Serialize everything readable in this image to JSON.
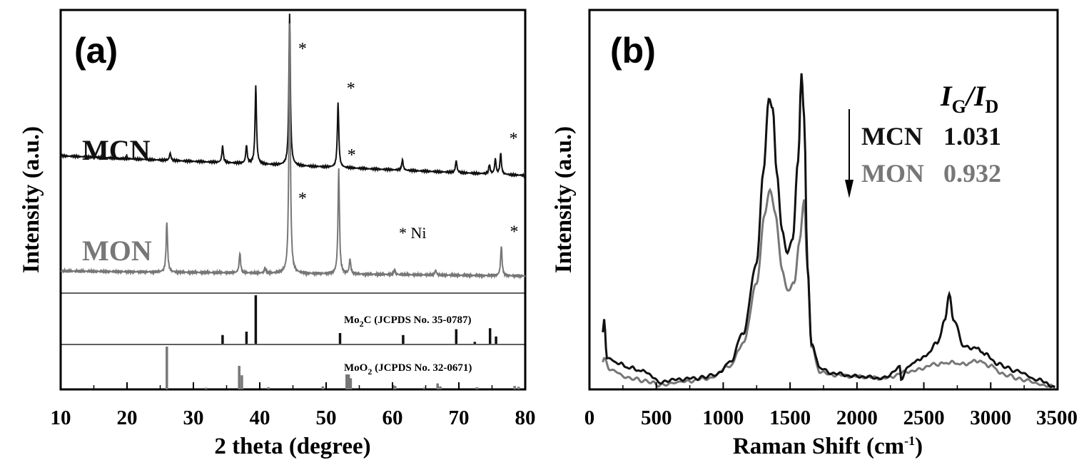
{
  "chart_data": [
    {
      "panel": "(a)",
      "type": "line",
      "xlabel": "2 theta (degree)",
      "ylabel": "Intensity (a.u.)",
      "xlim": [
        10,
        80
      ],
      "xticks": [
        "10",
        "20",
        "30",
        "40",
        "50",
        "60",
        "70",
        "80"
      ],
      "colors": {
        "MCN": "#111111",
        "MON": "#777777"
      },
      "series": [
        {
          "name": "MCN",
          "baseline_start": 0.13,
          "baseline_end": 0.0,
          "peaks": [
            [
              26.5,
              0.05
            ],
            [
              34.4,
              0.11
            ],
            [
              38.0,
              0.12
            ],
            [
              39.4,
              0.52
            ],
            [
              44.5,
              1.0
            ],
            [
              51.8,
              0.43
            ],
            [
              61.5,
              0.07
            ],
            [
              69.6,
              0.08
            ],
            [
              74.6,
              0.06
            ],
            [
              75.5,
              0.1
            ],
            [
              76.3,
              0.14
            ]
          ]
        },
        {
          "name": "MON",
          "baseline_start": 0.02,
          "baseline_end": 0.0,
          "peaks": [
            [
              26.0,
              0.2
            ],
            [
              37.0,
              0.08
            ],
            [
              40.8,
              0.02
            ],
            [
              44.5,
              1.0
            ],
            [
              51.9,
              0.42
            ],
            [
              53.6,
              0.06
            ],
            [
              60.3,
              0.02
            ],
            [
              66.5,
              0.02
            ],
            [
              76.4,
              0.12
            ]
          ]
        }
      ],
      "annotations": [
        {
          "text": "*",
          "series": "MCN",
          "x": 44.5
        },
        {
          "text": "*",
          "series": "MCN",
          "x": 51.8
        },
        {
          "text": "*",
          "series": "MCN",
          "x": 76.3
        },
        {
          "text": "*",
          "series": "MON",
          "x": 44.5
        },
        {
          "text": "*",
          "series": "MON",
          "x": 51.9
        },
        {
          "text": "*",
          "series": "MON",
          "x": 76.4
        },
        {
          "text": "* Ni"
        }
      ],
      "reference_patterns": [
        {
          "label_main": "Mo",
          "label_sub": "2",
          "label_rest": "C (JCPDS No. 35-0787)",
          "color": "#111111",
          "lines": [
            [
              34.4,
              0.18
            ],
            [
              38.0,
              0.25
            ],
            [
              39.4,
              1.0
            ],
            [
              52.1,
              0.22
            ],
            [
              61.6,
              0.18
            ],
            [
              69.6,
              0.3
            ],
            [
              74.7,
              0.32
            ],
            [
              75.6,
              0.15
            ],
            [
              72.4,
              0.04
            ]
          ]
        },
        {
          "label_main": "MoO",
          "label_sub": "2",
          "label_rest": " (JCPDS No. 32-0671)",
          "color": "#777777",
          "lines": [
            [
              26.0,
              1.0
            ],
            [
              31.9,
              0.04
            ],
            [
              36.9,
              0.55
            ],
            [
              37.3,
              0.33
            ],
            [
              41.3,
              0.05
            ],
            [
              49.5,
              0.07
            ],
            [
              53.1,
              0.35
            ],
            [
              53.4,
              0.35
            ],
            [
              53.7,
              0.26
            ],
            [
              60.1,
              0.1
            ],
            [
              60.4,
              0.08
            ],
            [
              64.8,
              0.04
            ],
            [
              66.8,
              0.14
            ],
            [
              67.2,
              0.07
            ],
            [
              72.7,
              0.05
            ],
            [
              78.4,
              0.08
            ],
            [
              79.0,
              0.06
            ]
          ]
        }
      ]
    },
    {
      "panel": "(b)",
      "type": "line",
      "xlabel": "Raman Shift (cm",
      "xlabel_sup": "-1",
      "xlabel_close": ")",
      "ylabel": "Intensity (a.u.)",
      "xlim": [
        0,
        3500
      ],
      "xticks": [
        "0",
        "500",
        "1000",
        "1500",
        "2000",
        "2500",
        "3000",
        "3500"
      ],
      "colors": {
        "MCN": "#111111",
        "MON": "#777777"
      },
      "series": [
        {
          "name": "MCN",
          "points": [
            [
              100,
              0.16
            ],
            [
              110,
              0.2
            ],
            [
              130,
              0.09
            ],
            [
              200,
              0.075
            ],
            [
              300,
              0.06
            ],
            [
              400,
              0.05
            ],
            [
              480,
              0.035
            ],
            [
              520,
              0.015
            ],
            [
              600,
              0.025
            ],
            [
              800,
              0.03
            ],
            [
              950,
              0.04
            ],
            [
              1050,
              0.075
            ],
            [
              1150,
              0.16
            ],
            [
              1250,
              0.36
            ],
            [
              1300,
              0.62
            ],
            [
              1340,
              0.83
            ],
            [
              1370,
              0.8
            ],
            [
              1400,
              0.62
            ],
            [
              1440,
              0.45
            ],
            [
              1480,
              0.39
            ],
            [
              1520,
              0.43
            ],
            [
              1560,
              0.65
            ],
            [
              1585,
              0.9
            ],
            [
              1605,
              0.78
            ],
            [
              1630,
              0.35
            ],
            [
              1660,
              0.13
            ],
            [
              1720,
              0.06
            ],
            [
              1800,
              0.045
            ],
            [
              2000,
              0.035
            ],
            [
              2200,
              0.03
            ],
            [
              2320,
              0.06
            ],
            [
              2330,
              0.03
            ],
            [
              2400,
              0.07
            ],
            [
              2500,
              0.09
            ],
            [
              2600,
              0.13
            ],
            [
              2660,
              0.2
            ],
            [
              2690,
              0.27
            ],
            [
              2720,
              0.2
            ],
            [
              2800,
              0.12
            ],
            [
              2900,
              0.115
            ],
            [
              2960,
              0.1
            ],
            [
              3050,
              0.07
            ],
            [
              3200,
              0.05
            ],
            [
              3350,
              0.025
            ],
            [
              3480,
              0.005
            ]
          ]
        },
        {
          "name": "MON",
          "points": [
            [
              100,
              0.08
            ],
            [
              110,
              0.085
            ],
            [
              150,
              0.055
            ],
            [
              300,
              0.03
            ],
            [
              450,
              0.02
            ],
            [
              520,
              0.01
            ],
            [
              700,
              0.02
            ],
            [
              900,
              0.03
            ],
            [
              1050,
              0.065
            ],
            [
              1150,
              0.13
            ],
            [
              1250,
              0.3
            ],
            [
              1310,
              0.5
            ],
            [
              1350,
              0.57
            ],
            [
              1390,
              0.5
            ],
            [
              1440,
              0.34
            ],
            [
              1480,
              0.28
            ],
            [
              1530,
              0.3
            ],
            [
              1570,
              0.42
            ],
            [
              1605,
              0.54
            ],
            [
              1630,
              0.35
            ],
            [
              1660,
              0.12
            ],
            [
              1720,
              0.05
            ],
            [
              1800,
              0.04
            ],
            [
              2000,
              0.035
            ],
            [
              2200,
              0.03
            ],
            [
              2400,
              0.05
            ],
            [
              2600,
              0.07
            ],
            [
              2700,
              0.075
            ],
            [
              2800,
              0.07
            ],
            [
              2900,
              0.08
            ],
            [
              3000,
              0.065
            ],
            [
              3100,
              0.04
            ],
            [
              3250,
              0.025
            ],
            [
              3400,
              0.01
            ],
            [
              3480,
              0.005
            ]
          ]
        }
      ],
      "ratio_box": {
        "head_i": "I",
        "head_g": "G",
        "head_slash": "/",
        "head_d": "D",
        "rows": [
          {
            "name": "MCN",
            "value": "1.031"
          },
          {
            "name": "MON",
            "value": "0.932"
          }
        ]
      }
    }
  ]
}
